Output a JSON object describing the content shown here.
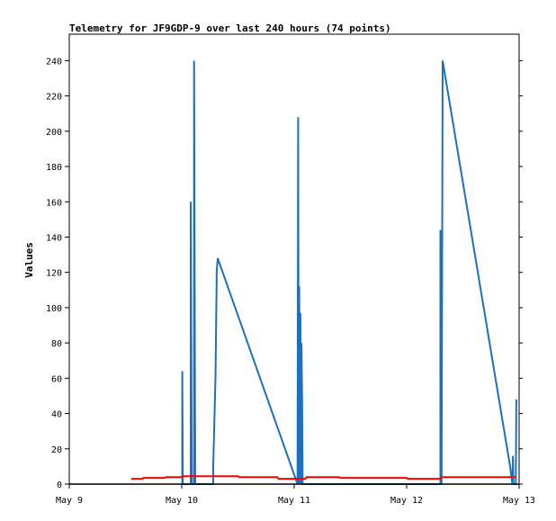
{
  "chart_data": {
    "type": "line",
    "title": "Telemetry for JF9GDP-9 over last 240 hours (74 points)",
    "xlabel": "",
    "ylabel": "Values",
    "x_domain_days": [
      9,
      13
    ],
    "x_ticks": [
      {
        "label": "May 9",
        "day": 9
      },
      {
        "label": "May 10",
        "day": 10
      },
      {
        "label": "May 11",
        "day": 11
      },
      {
        "label": "May 12",
        "day": 12
      },
      {
        "label": "May 13",
        "day": 13
      }
    ],
    "ylim": [
      0,
      255
    ],
    "y_ticks": [
      0,
      20,
      40,
      60,
      80,
      100,
      120,
      140,
      160,
      180,
      200,
      220,
      240
    ],
    "grid": false,
    "legend": "none",
    "series": [
      {
        "color": "#1f6fbf",
        "points": [
          [
            10.005,
            0
          ],
          [
            10.005,
            64
          ],
          [
            10.01,
            0
          ],
          [
            10.08,
            0
          ],
          [
            10.08,
            160
          ],
          [
            10.09,
            0
          ],
          [
            10.11,
            0
          ],
          [
            10.11,
            240
          ],
          [
            10.12,
            0
          ],
          [
            10.28,
            0
          ],
          [
            10.28,
            10
          ],
          [
            10.3,
            60
          ],
          [
            10.31,
            115
          ],
          [
            10.31,
            120
          ],
          [
            10.32,
            128
          ],
          [
            11.03,
            0
          ],
          [
            11.035,
            208
          ],
          [
            11.04,
            0
          ],
          [
            11.045,
            112
          ],
          [
            11.05,
            0
          ],
          [
            11.055,
            97
          ],
          [
            11.06,
            0
          ],
          [
            11.065,
            80
          ],
          [
            11.07,
            48
          ],
          [
            11.075,
            0
          ],
          [
            12.3,
            0
          ],
          [
            12.3,
            144
          ],
          [
            12.31,
            0
          ],
          [
            12.315,
            120
          ],
          [
            12.32,
            240
          ],
          [
            12.92,
            10
          ],
          [
            12.94,
            0
          ],
          [
            12.945,
            16
          ],
          [
            12.95,
            0
          ],
          [
            12.97,
            0
          ],
          [
            12.975,
            48
          ]
        ]
      },
      {
        "color": "#ff0000",
        "points": [
          [
            9.55,
            3
          ],
          [
            9.65,
            3
          ],
          [
            9.66,
            3.5
          ],
          [
            9.85,
            3.5
          ],
          [
            9.86,
            4
          ],
          [
            10.0,
            4
          ],
          [
            10.01,
            4.5
          ],
          [
            10.5,
            4.5
          ],
          [
            10.51,
            4
          ],
          [
            10.85,
            4
          ],
          [
            10.86,
            3
          ],
          [
            11.1,
            3
          ],
          [
            11.11,
            4
          ],
          [
            11.4,
            4
          ],
          [
            11.41,
            3.5
          ],
          [
            12.0,
            3.5
          ],
          [
            12.01,
            3
          ],
          [
            12.3,
            3
          ],
          [
            12.31,
            4
          ],
          [
            12.97,
            4
          ]
        ]
      },
      {
        "color": "#000000",
        "points": [
          [
            9.0,
            0
          ],
          [
            13.0,
            0
          ]
        ]
      }
    ]
  }
}
